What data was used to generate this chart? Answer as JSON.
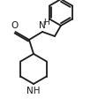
{
  "bg_color": "#ffffff",
  "line_color": "#1a1a1a",
  "line_width": 1.3,
  "font_size_atom": 7.5,
  "font_size_h": 6.5,
  "figsize": [
    1.11,
    1.2
  ],
  "dpi": 100,
  "xlim": [
    0,
    11.1
  ],
  "ylim": [
    0,
    12.0
  ]
}
